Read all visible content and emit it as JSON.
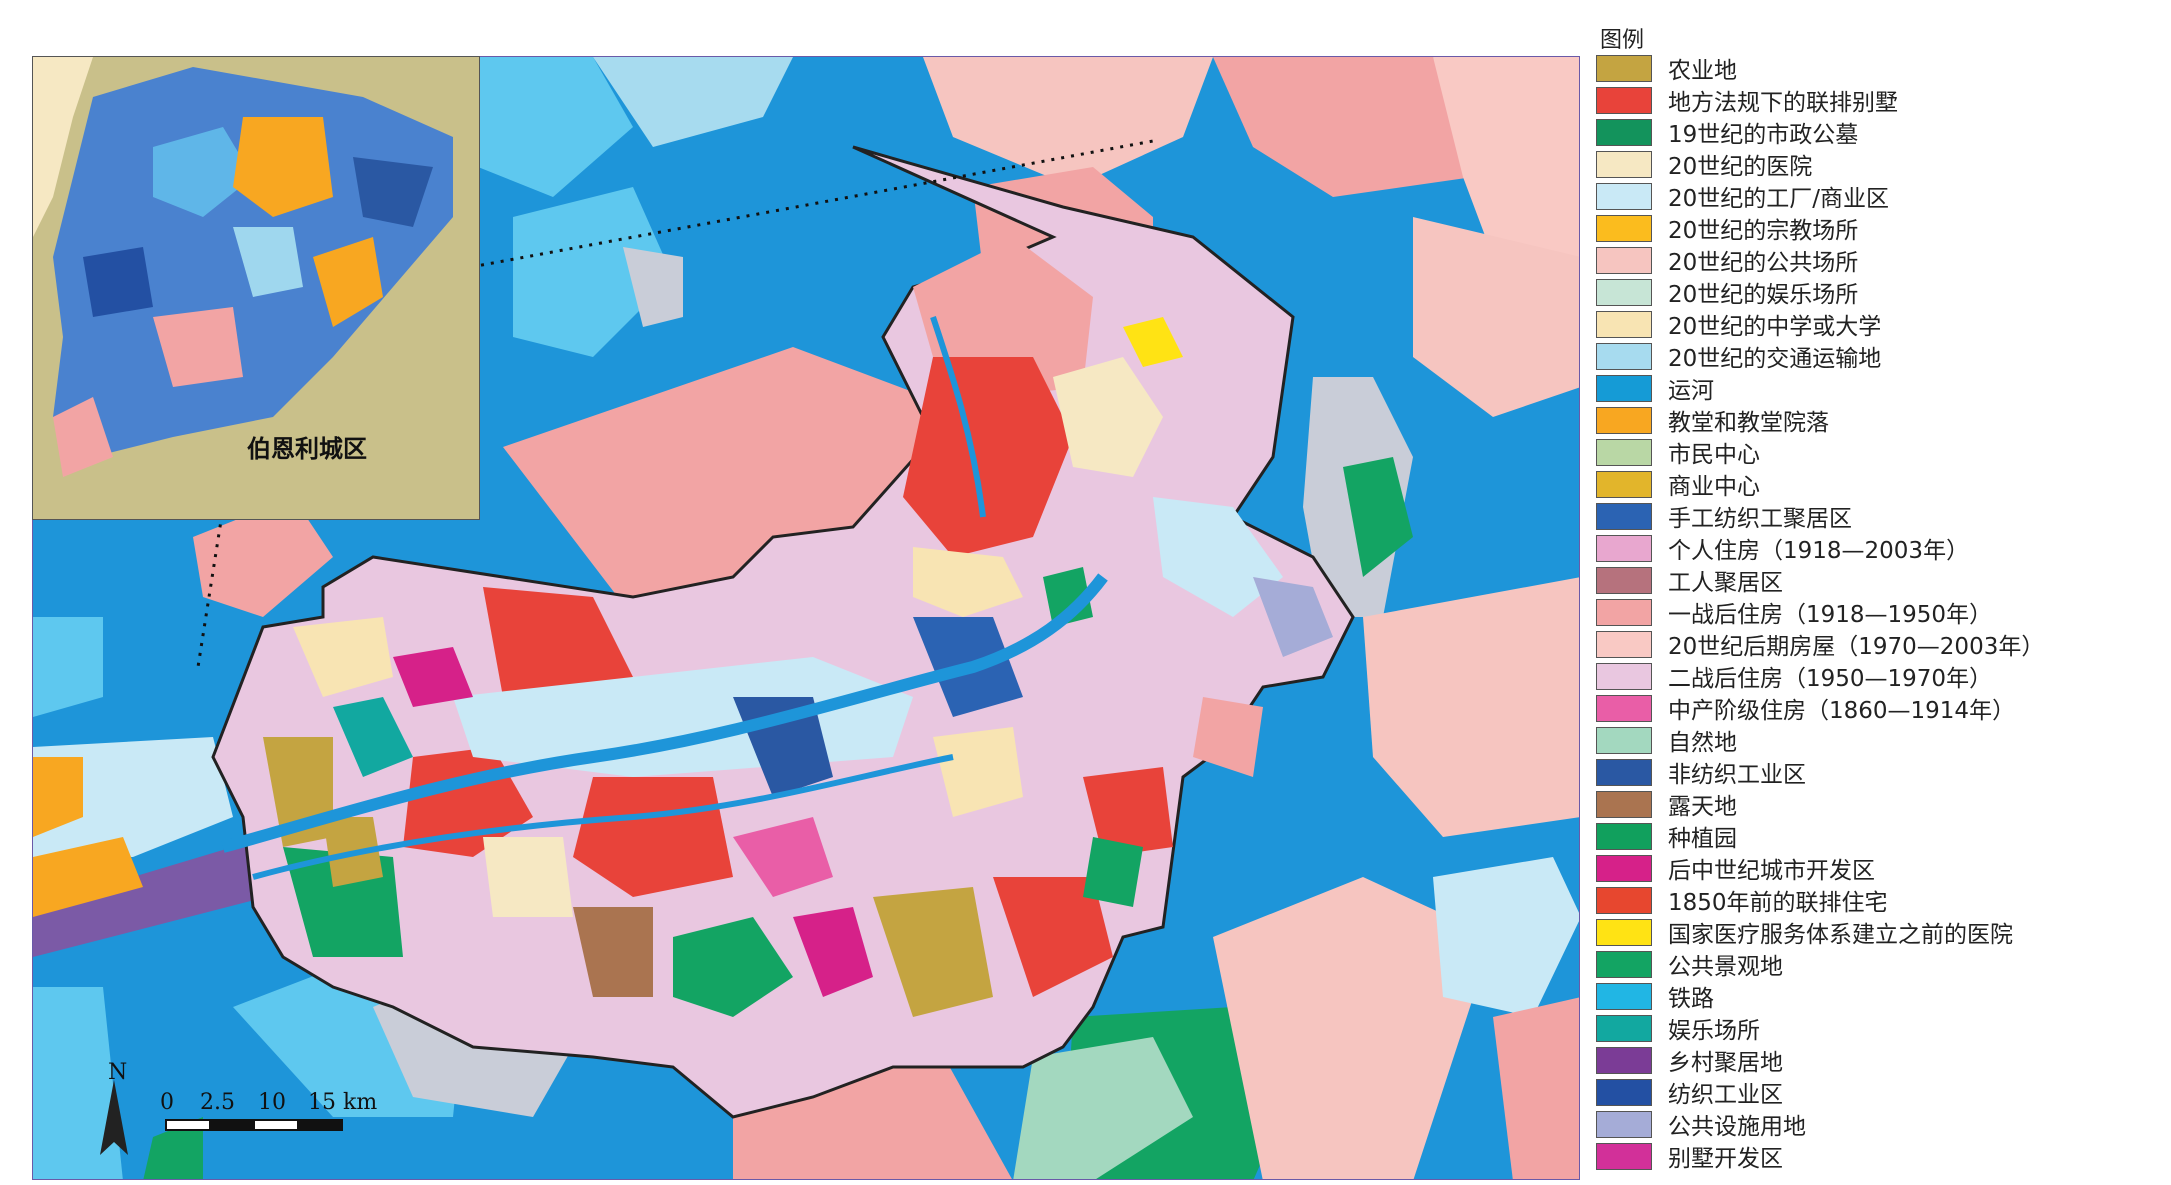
{
  "legend": {
    "title": "图例",
    "items": [
      {
        "label": "农业地",
        "color": "#c4a441"
      },
      {
        "label": "地方法规下的联排别墅",
        "color": "#e8433a"
      },
      {
        "label": "19世纪的市政公墓",
        "color": "#13935c"
      },
      {
        "label": "20世纪的医院",
        "color": "#f6e8c3"
      },
      {
        "label": "20世纪的工厂/商业区",
        "color": "#c9e9f6"
      },
      {
        "label": "20世纪的宗教场所",
        "color": "#fbbc1e"
      },
      {
        "label": "20世纪的公共场所",
        "color": "#f6c5c0"
      },
      {
        "label": "20世纪的娱乐场所",
        "color": "#c7e5d6"
      },
      {
        "label": "20世纪的中学或大学",
        "color": "#f8e4b3"
      },
      {
        "label": "20世纪的交通运输地",
        "color": "#a7dbef"
      },
      {
        "label": "运河",
        "color": "#159bd6"
      },
      {
        "label": "教堂和教堂院落",
        "color": "#f8a721"
      },
      {
        "label": "市民中心",
        "color": "#b9d7a5"
      },
      {
        "label": "商业中心",
        "color": "#e2b52b"
      },
      {
        "label": "手工纺织工聚居区",
        "color": "#2b63b3"
      },
      {
        "label": "个人住房（1918—2003年）",
        "color": "#e8a7cf"
      },
      {
        "label": "工人聚居区",
        "color": "#b6727d"
      },
      {
        "label": "一战后住房（1918—1950年）",
        "color": "#f2a4a4"
      },
      {
        "label": "20世纪后期房屋（1970—2003年）",
        "color": "#f9c9c4"
      },
      {
        "label": "二战后住房（1950—1970年）",
        "color": "#e9c7e0"
      },
      {
        "label": "中产阶级住房（1860—1914年）",
        "color": "#e95ea7"
      },
      {
        "label": "自然地",
        "color": "#a3d8bf"
      },
      {
        "label": "非纺织工业区",
        "color": "#2a58a3"
      },
      {
        "label": "露天地",
        "color": "#aa7450"
      },
      {
        "label": "种植园",
        "color": "#11a05d"
      },
      {
        "label": "后中世纪城市开发区",
        "color": "#d62189"
      },
      {
        "label": "1850年前的联排住宅",
        "color": "#e7472f"
      },
      {
        "label": "国家医疗服务体系建立之前的医院",
        "color": "#ffe314"
      },
      {
        "label": "公共景观地",
        "color": "#13a463"
      },
      {
        "label": "铁路",
        "color": "#21b6e4"
      },
      {
        "label": "娱乐场所",
        "color": "#12a8a0"
      },
      {
        "label": "乡村聚居地",
        "color": "#7b3c96"
      },
      {
        "label": "纺织工业区",
        "color": "#2350a3"
      },
      {
        "label": "公共设施用地",
        "color": "#a5acd7"
      },
      {
        "label": "别墅开发区",
        "color": "#d23099"
      }
    ]
  },
  "inset": {
    "label": "伯恩利城区"
  },
  "scale": {
    "ticks": [
      "0",
      "2.5",
      "10",
      "15 km"
    ],
    "north": "N"
  }
}
